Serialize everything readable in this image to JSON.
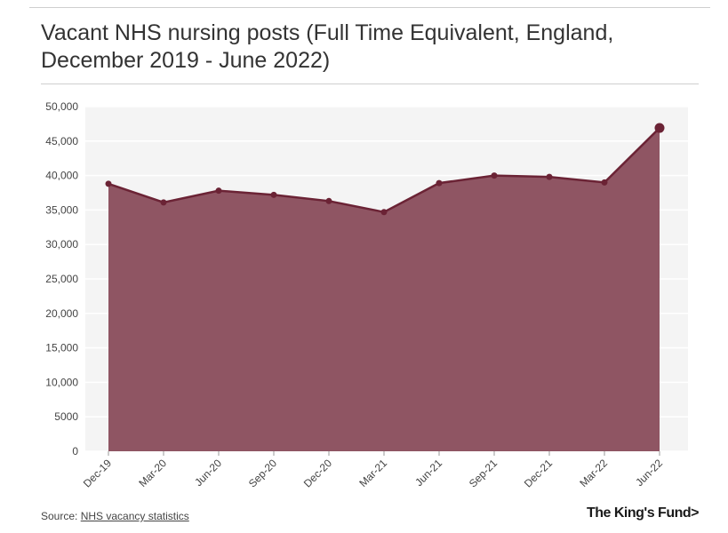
{
  "header": {
    "title": "Vacant NHS nursing posts (Full Time Equivalent, England, December 2019 - June 2022)"
  },
  "footer": {
    "source_prefix": "Source:",
    "source_link": "NHS vacancy statistics",
    "logo": "The King's Fund>"
  },
  "colors": {
    "series_line": "#6b2335",
    "area_fill": "#8f5563",
    "plot_background": "#f4f4f4",
    "grid": "#ffffff"
  },
  "chart_data": {
    "type": "area",
    "title": "Vacant NHS nursing posts (Full Time Equivalent, England, December 2019 - June 2022)",
    "xlabel": "",
    "ylabel": "",
    "categories": [
      "Dec-19",
      "Mar-20",
      "Jun-20",
      "Sep-20",
      "Dec-20",
      "Mar-21",
      "Jun-21",
      "Sep-21",
      "Dec-21",
      "Mar-22",
      "Jun-22"
    ],
    "series": [
      {
        "values": [
          38800,
          36100,
          37800,
          37200,
          36300,
          34700,
          38900,
          40000,
          39800,
          39000,
          46900
        ]
      }
    ],
    "ylim": [
      0,
      50000
    ],
    "yticks": [
      0,
      5000,
      10000,
      15000,
      20000,
      25000,
      30000,
      35000,
      40000,
      45000,
      50000
    ],
    "ytick_labels": [
      "0",
      "5000",
      "10,000",
      "15,000",
      "20,000",
      "25,000",
      "30,000",
      "35,000",
      "40,000",
      "45,000",
      "50,000"
    ],
    "grid": true,
    "legend": "none"
  }
}
